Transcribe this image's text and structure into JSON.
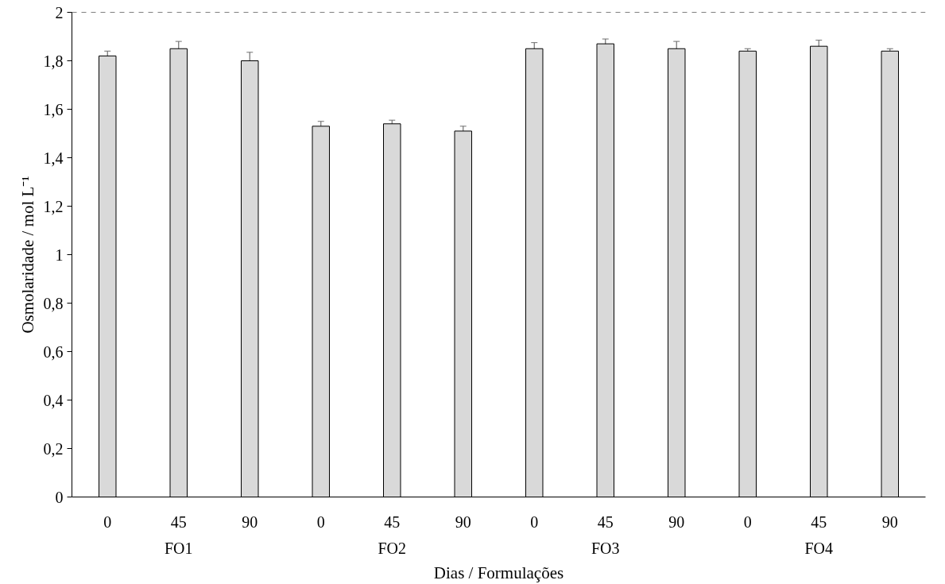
{
  "chart_data": {
    "type": "bar",
    "xlabel": "Dias / Formulações",
    "ylabel": "Osmolaridade / mol L⁻¹",
    "categories": [
      "0",
      "45",
      "90",
      "0",
      "45",
      "90",
      "0",
      "45",
      "90",
      "0",
      "45",
      "90"
    ],
    "values": [
      1.82,
      1.85,
      1.8,
      1.53,
      1.54,
      1.51,
      1.85,
      1.87,
      1.85,
      1.84,
      1.86,
      1.84
    ],
    "errors": [
      0.02,
      0.03,
      0.035,
      0.02,
      0.015,
      0.02,
      0.025,
      0.02,
      0.03,
      0.01,
      0.025,
      0.01
    ],
    "color": "#d9d9d9",
    "annotations": [
      "FO1",
      "FO2",
      "FO3",
      "FO4"
    ],
    "ylim": [
      0,
      2
    ],
    "yticks": [
      0,
      {
        "value": 0.2,
        "label": "0,2"
      },
      {
        "value": 0.4,
        "label": "0,4"
      },
      {
        "value": 0.6,
        "label": "0,6"
      },
      {
        "value": 0.8,
        "label": "0,8"
      },
      1,
      {
        "value": 1.2,
        "label": "1,2"
      },
      {
        "value": 1.4,
        "label": "1,4"
      },
      {
        "value": 1.6,
        "label": "1,6"
      },
      {
        "value": 1.8,
        "label": "1,8"
      },
      2
    ],
    "ref_lines": [
      {
        "axis": "y",
        "value": 2,
        "label": null,
        "line_style": "dashed",
        "color": "#000000"
      }
    ],
    "grid": false
  }
}
